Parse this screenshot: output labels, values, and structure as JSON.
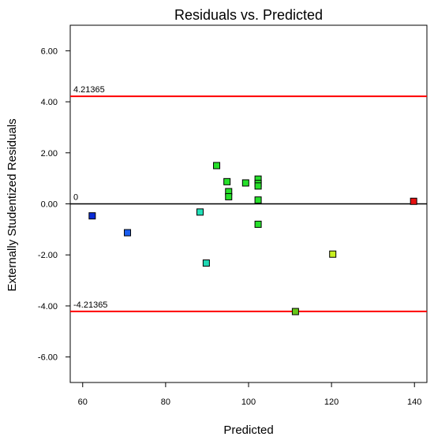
{
  "chart_data": {
    "type": "scatter",
    "title": "Residuals vs. Predicted",
    "xlabel": "Predicted",
    "ylabel": "Externally Studentized Residuals",
    "xlim": [
      57,
      143
    ],
    "ylim": [
      -7.0,
      7.0
    ],
    "xticks": [
      {
        "value": 60,
        "label": "60"
      },
      {
        "value": 80,
        "label": "80"
      },
      {
        "value": 100,
        "label": "100"
      },
      {
        "value": 120,
        "label": "120"
      },
      {
        "value": 140,
        "label": "140"
      }
    ],
    "yticks": [
      {
        "value": 6,
        "label": "6.00"
      },
      {
        "value": 4,
        "label": "4.00"
      },
      {
        "value": 2,
        "label": "2.00"
      },
      {
        "value": 0,
        "label": "0.00"
      },
      {
        "value": -2,
        "label": "-2.00"
      },
      {
        "value": -4,
        "label": "-4.00"
      },
      {
        "value": -6,
        "label": "-6.00"
      }
    ],
    "reference_lines": [
      {
        "value": 4.21365,
        "label": "4.21365",
        "color": "#ff0000"
      },
      {
        "value": 0,
        "label": "0",
        "color": "#000000"
      },
      {
        "value": -4.21365,
        "label": "-4.21365",
        "color": "#ff0000"
      }
    ],
    "points": [
      {
        "x": 62.3,
        "y": -0.47,
        "color": "#0a2bd6"
      },
      {
        "x": 70.8,
        "y": -1.13,
        "color": "#1a5ef0"
      },
      {
        "x": 88.3,
        "y": -0.32,
        "color": "#22e0b8"
      },
      {
        "x": 89.8,
        "y": -2.32,
        "color": "#20d8b4"
      },
      {
        "x": 92.3,
        "y": 1.5,
        "color": "#26e02a"
      },
      {
        "x": 94.8,
        "y": 0.87,
        "color": "#26e02a"
      },
      {
        "x": 95.2,
        "y": 0.48,
        "color": "#26e02a"
      },
      {
        "x": 95.2,
        "y": 0.28,
        "color": "#26e02a"
      },
      {
        "x": 99.3,
        "y": 0.82,
        "color": "#26e02a"
      },
      {
        "x": 102.3,
        "y": 0.97,
        "color": "#26e02a"
      },
      {
        "x": 102.3,
        "y": 0.8,
        "color": "#26e02a"
      },
      {
        "x": 102.3,
        "y": 0.7,
        "color": "#26e02a"
      },
      {
        "x": 102.3,
        "y": 0.15,
        "color": "#26e02a"
      },
      {
        "x": 102.3,
        "y": -0.8,
        "color": "#26e02a"
      },
      {
        "x": 111.3,
        "y": -4.22,
        "color": "#66c818"
      },
      {
        "x": 120.3,
        "y": -1.97,
        "color": "#c8f020"
      },
      {
        "x": 139.8,
        "y": 0.1,
        "color": "#e81010"
      }
    ],
    "grid": false,
    "legend": "none"
  }
}
